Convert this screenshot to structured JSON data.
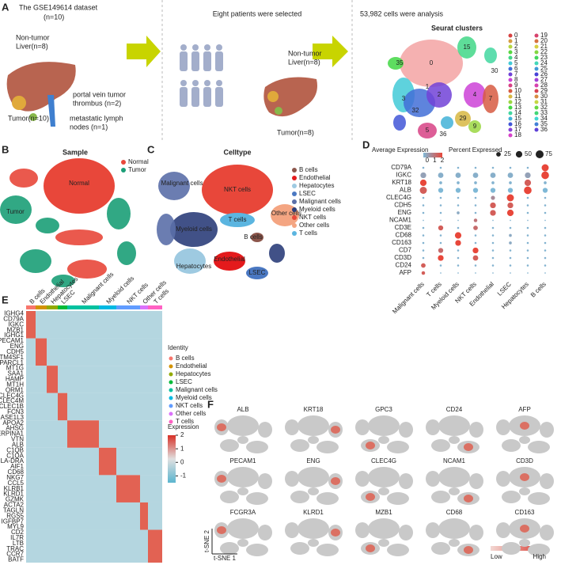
{
  "panel_a": {
    "letter": "A",
    "dataset_title": "The GSE149614 dataset",
    "dataset_n": "(n=10)",
    "nontumor": [
      "Non-tumor",
      "Liver(n=8)"
    ],
    "pvtt": [
      "portal vein tumor",
      "thrombus (n=2)"
    ],
    "tumor": "Tumor(n=10)",
    "lymph": [
      "metastatic lymph",
      "nodes (n=1)"
    ],
    "selected": "Eight patients were selected",
    "nontumor2": [
      "Non-tumor",
      "Liver(n=8)"
    ],
    "tumor2": "Tumor(n=8)",
    "analysis": "53,982 cells were analysis",
    "clusters_title": "Seurat clusters",
    "map_labels": [
      "0",
      "15",
      "1",
      "2",
      "3",
      "4",
      "5",
      "7",
      "9",
      "29",
      "32",
      "36",
      "30",
      "35"
    ],
    "legend": [
      "0",
      "1",
      "2",
      "3",
      "4",
      "5",
      "6",
      "7",
      "8",
      "9",
      "10",
      "11",
      "12",
      "13",
      "14",
      "15",
      "16",
      "17",
      "18",
      "19",
      "20",
      "21",
      "22",
      "23",
      "24",
      "25",
      "26",
      "27",
      "28",
      "29",
      "30",
      "31",
      "32",
      "33",
      "34",
      "35",
      "36"
    ]
  },
  "panel_b": {
    "letter": "B",
    "title": "Sample",
    "map_labels": [
      "Normal",
      "Tumor"
    ],
    "legend": [
      {
        "name": "Normal",
        "color": "#e8473a"
      },
      {
        "name": "Tumor",
        "color": "#1b9e77"
      }
    ]
  },
  "panel_c": {
    "letter": "C",
    "title": "Celltype",
    "map_labels": [
      "NKT cells",
      "Malignant cells",
      "T cells",
      "Other cells",
      "Myeloid cells",
      "B cells",
      "Endothelial",
      "Hepatocytes",
      "LSEC"
    ],
    "legend": [
      {
        "name": "B cells",
        "color": "#8c564b"
      },
      {
        "name": "Endothelial",
        "color": "#e41a1c"
      },
      {
        "name": "Hepatocytes",
        "color": "#9ecae1"
      },
      {
        "name": "LSEC",
        "color": "#4a78c2"
      },
      {
        "name": "Malignant cells",
        "color": "#5b6fa8"
      },
      {
        "name": "Myeloid cells",
        "color": "#2c3e7a"
      },
      {
        "name": "NKT cells",
        "color": "#e8473a"
      },
      {
        "name": "Other cells",
        "color": "#f4a582"
      },
      {
        "name": "T cells",
        "color": "#5bb5e0"
      }
    ]
  },
  "panel_d": {
    "letter": "D",
    "expr_title": "Average Expression",
    "expr_ticks": [
      0,
      1,
      2
    ],
    "expr_lim": [
      -0.5,
      2
    ],
    "pct_title": "Percent Expressed",
    "pct_ticks": [
      25,
      50,
      75
    ],
    "columns": [
      "Malignant cells",
      "T cells",
      "Myeloid cells",
      "NKT cells",
      "Endothelial",
      "LSEC",
      "Hepatocytes",
      "B cells"
    ],
    "rows": [
      {
        "gene": "CD79A",
        "pct": [
          5,
          5,
          5,
          5,
          5,
          5,
          5,
          60
        ],
        "expr": [
          -0.4,
          -0.4,
          -0.4,
          -0.4,
          -0.4,
          -0.4,
          -0.4,
          2
        ]
      },
      {
        "gene": "IGKC",
        "pct": [
          40,
          35,
          35,
          35,
          35,
          35,
          40,
          70
        ],
        "expr": [
          0,
          -0.3,
          -0.3,
          -0.3,
          -0.3,
          -0.3,
          0,
          2
        ]
      },
      {
        "gene": "KRT18",
        "pct": [
          50,
          10,
          10,
          10,
          10,
          10,
          50,
          10
        ],
        "expr": [
          2,
          -0.4,
          -0.4,
          -0.4,
          -0.4,
          -0.4,
          1.5,
          -0.4
        ]
      },
      {
        "gene": "ALB",
        "pct": [
          60,
          30,
          30,
          30,
          30,
          30,
          70,
          30
        ],
        "expr": [
          1.5,
          -0.5,
          -0.5,
          -0.5,
          -0.5,
          -0.5,
          2,
          -0.5
        ]
      },
      {
        "gene": "CLEC4G",
        "pct": [
          5,
          5,
          5,
          5,
          20,
          60,
          5,
          5
        ],
        "expr": [
          -0.4,
          -0.4,
          -0.4,
          -0.4,
          0.5,
          2,
          -0.4,
          -0.4
        ]
      },
      {
        "gene": "CDH5",
        "pct": [
          5,
          5,
          5,
          5,
          40,
          40,
          5,
          5
        ],
        "expr": [
          -0.4,
          -0.4,
          -0.4,
          -0.4,
          1.5,
          1.5,
          -0.4,
          -0.4
        ]
      },
      {
        "gene": "ENG",
        "pct": [
          5,
          5,
          10,
          5,
          40,
          50,
          5,
          5
        ],
        "expr": [
          -0.4,
          -0.4,
          -0.2,
          -0.4,
          1.5,
          2,
          -0.4,
          -0.4
        ]
      },
      {
        "gene": "NCAM1",
        "pct": [
          2,
          2,
          2,
          15,
          2,
          2,
          2,
          2
        ],
        "expr": [
          -0.4,
          -0.4,
          -0.4,
          1,
          -0.4,
          -0.4,
          -0.4,
          -0.4
        ]
      },
      {
        "gene": "CD3E",
        "pct": [
          5,
          30,
          5,
          25,
          5,
          5,
          5,
          5
        ],
        "expr": [
          -0.4,
          1.5,
          -0.4,
          1.2,
          -0.4,
          -0.4,
          -0.4,
          -0.4
        ]
      },
      {
        "gene": "CD68",
        "pct": [
          5,
          5,
          50,
          5,
          5,
          10,
          5,
          5
        ],
        "expr": [
          -0.4,
          -0.4,
          2,
          -0.4,
          -0.4,
          -0.2,
          -0.4,
          -0.4
        ]
      },
      {
        "gene": "CD163",
        "pct": [
          5,
          5,
          40,
          5,
          5,
          10,
          5,
          5
        ],
        "expr": [
          -0.4,
          -0.4,
          2,
          -0.4,
          -0.4,
          -0.2,
          -0.4,
          -0.4
        ]
      },
      {
        "gene": "CD7",
        "pct": [
          5,
          30,
          5,
          40,
          5,
          5,
          5,
          5
        ],
        "expr": [
          -0.4,
          1.2,
          -0.4,
          2,
          -0.4,
          -0.4,
          -0.4,
          -0.4
        ]
      },
      {
        "gene": "CD3D",
        "pct": [
          5,
          40,
          5,
          35,
          5,
          5,
          5,
          5
        ],
        "expr": [
          -0.4,
          2,
          -0.4,
          1.5,
          -0.4,
          -0.4,
          -0.4,
          -0.4
        ]
      },
      {
        "gene": "CD24",
        "pct": [
          25,
          5,
          5,
          5,
          5,
          5,
          5,
          5
        ],
        "expr": [
          1.5,
          -0.4,
          -0.4,
          -0.4,
          -0.4,
          -0.4,
          -0.4,
          -0.4
        ]
      },
      {
        "gene": "AFP",
        "pct": [
          15,
          2,
          2,
          2,
          2,
          2,
          2,
          2
        ],
        "expr": [
          1.5,
          -0.4,
          -0.4,
          -0.4,
          -0.4,
          -0.4,
          -0.4,
          -0.4
        ]
      }
    ]
  },
  "panel_e": {
    "letter": "E",
    "identity_title": "Identity",
    "expression_title": "Expression",
    "expression_ticks": [
      2,
      1,
      0,
      -1
    ],
    "identities": [
      {
        "name": "B cells",
        "color": "#f8766d"
      },
      {
        "name": "Endothelial",
        "color": "#d39200"
      },
      {
        "name": "Hepatocytes",
        "color": "#93aa00"
      },
      {
        "name": "LSEC",
        "color": "#00ba38"
      },
      {
        "name": "Malignant cells",
        "color": "#00c19f"
      },
      {
        "name": "Myeloid cells",
        "color": "#00b9e3"
      },
      {
        "name": "NKT cells",
        "color": "#619cff"
      },
      {
        "name": "Other cells",
        "color": "#db72fb"
      },
      {
        "name": "T cells",
        "color": "#ff61c3"
      }
    ],
    "genes": [
      "IGHG4",
      "CD79A",
      "IGKC",
      "MZB1",
      "IGHG1",
      "PECAM1",
      "ENG",
      "CDH5",
      "TM4SF1",
      "SPARCL1",
      "MT1G",
      "SAA1",
      "HAMP",
      "MT1H",
      "ORM1",
      "CLEC4G",
      "CLEC4M",
      "CLEC1B",
      "FCN3",
      "DNASE1L3",
      "APOA2",
      "AHSG",
      "SERPINA1",
      "VTN",
      "ALB",
      "C1QB",
      "C1QA",
      "HLA-DRA",
      "AIF1",
      "CD68",
      "NKG7",
      "CCL5",
      "KLRB1",
      "KLRD1",
      "GZMK",
      "ACTA2",
      "TAGLN",
      "RGS5",
      "IGFBP7",
      "MYL9",
      "CD2",
      "IL7R",
      "LTB",
      "TRAC",
      "CCR7",
      "BATF"
    ]
  },
  "panel_f": {
    "letter": "F",
    "genes": [
      "ALB",
      "KRT18",
      "GPC3",
      "CD24",
      "AFP",
      "PECAM1",
      "ENG",
      "CLEC4G",
      "NCAM1",
      "CD3D",
      "FCGR3A",
      "KLRD1",
      "MZB1",
      "CD68",
      "CD163"
    ],
    "axis_y": "t-SNE 2",
    "axis_x": "t-SNE 1",
    "low": "Low",
    "high": "High"
  }
}
